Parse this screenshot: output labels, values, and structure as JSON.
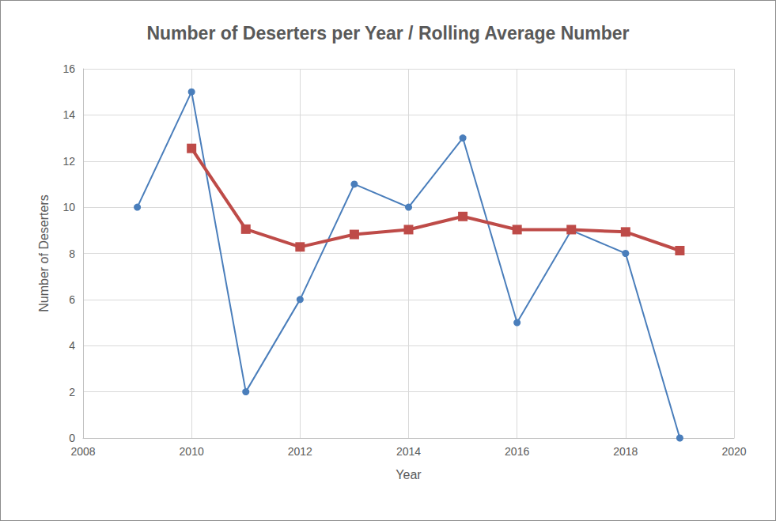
{
  "chart_data": {
    "type": "line",
    "title": "Number of Deserters per Year / Rolling Average Number",
    "x_label": "Year",
    "y_label": "Number of Deserters",
    "x": [
      2009,
      2010,
      2011,
      2012,
      2013,
      2014,
      2015,
      2016,
      2017,
      2018,
      2019
    ],
    "series": [
      {
        "color": "#4a7ebb",
        "marker": "circle",
        "line_style": "solid",
        "values": [
          10,
          15,
          2,
          6,
          11,
          10,
          13,
          5,
          9,
          8,
          0
        ]
      },
      {
        "color": "#be4b48",
        "marker": "square",
        "line_style": "solid",
        "values": [
          null,
          12.55,
          9.05,
          8.28,
          8.82,
          9.03,
          9.6,
          9.03,
          9.03,
          8.93,
          8.12
        ]
      }
    ],
    "xlim": [
      2008,
      2020
    ],
    "xticks": [
      2008,
      2010,
      2012,
      2014,
      2016,
      2018,
      2020
    ],
    "ylim": [
      0,
      16
    ],
    "yticks": [
      0,
      2,
      4,
      6,
      8,
      10,
      12,
      14,
      16
    ],
    "grid": true
  }
}
